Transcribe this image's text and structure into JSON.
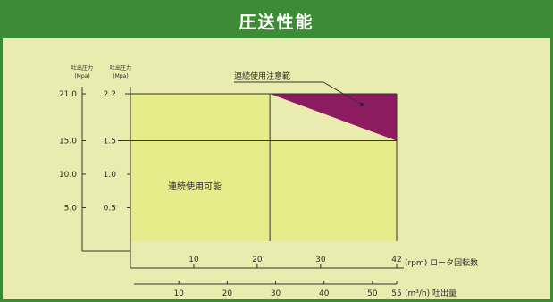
{
  "header": {
    "title": "圧送性能"
  },
  "colors": {
    "frame": "#3b8a36",
    "background": "#e9ecae",
    "plot_area": "#e6ec8a",
    "caution_zone": "#8c1c5f"
  },
  "chart_data": {
    "type": "area",
    "title": "圧送性能",
    "y_axis_outer": {
      "label": "吐出圧力",
      "unit": "(Mpa)",
      "ticks": [
        "5.0",
        "10.0",
        "15.0",
        "21.0"
      ]
    },
    "y_axis_inner": {
      "label": "吐出圧力",
      "unit": "(Mpa)",
      "ticks": [
        "0.5",
        "1.0",
        "1.5",
        "2.2"
      ]
    },
    "x_axis_top": {
      "label": "(rpm) ロータ回転数",
      "ticks": [
        "10",
        "20",
        "30",
        "42"
      ],
      "range": [
        0,
        42
      ]
    },
    "x_axis_bottom": {
      "label": "(m³/h) 吐出量",
      "ticks": [
        "10",
        "20",
        "30",
        "40",
        "50",
        "55"
      ]
    },
    "ylim": [
      0,
      2.2
    ],
    "regions": [
      {
        "label": "連続使用可能",
        "polygon": [
          [
            0,
            0
          ],
          [
            42,
            0
          ],
          [
            42,
            1.5
          ],
          [
            22,
            1.5
          ],
          [
            22,
            2.2
          ],
          [
            0,
            2.2
          ]
        ]
      },
      {
        "label": "連続使用注意範",
        "polygon": [
          [
            22,
            2.2
          ],
          [
            42,
            2.2
          ],
          [
            42,
            1.5
          ]
        ]
      }
    ],
    "reference_lines": {
      "vertical_rpm": 22,
      "horizontal_pressure": 1.5
    }
  }
}
